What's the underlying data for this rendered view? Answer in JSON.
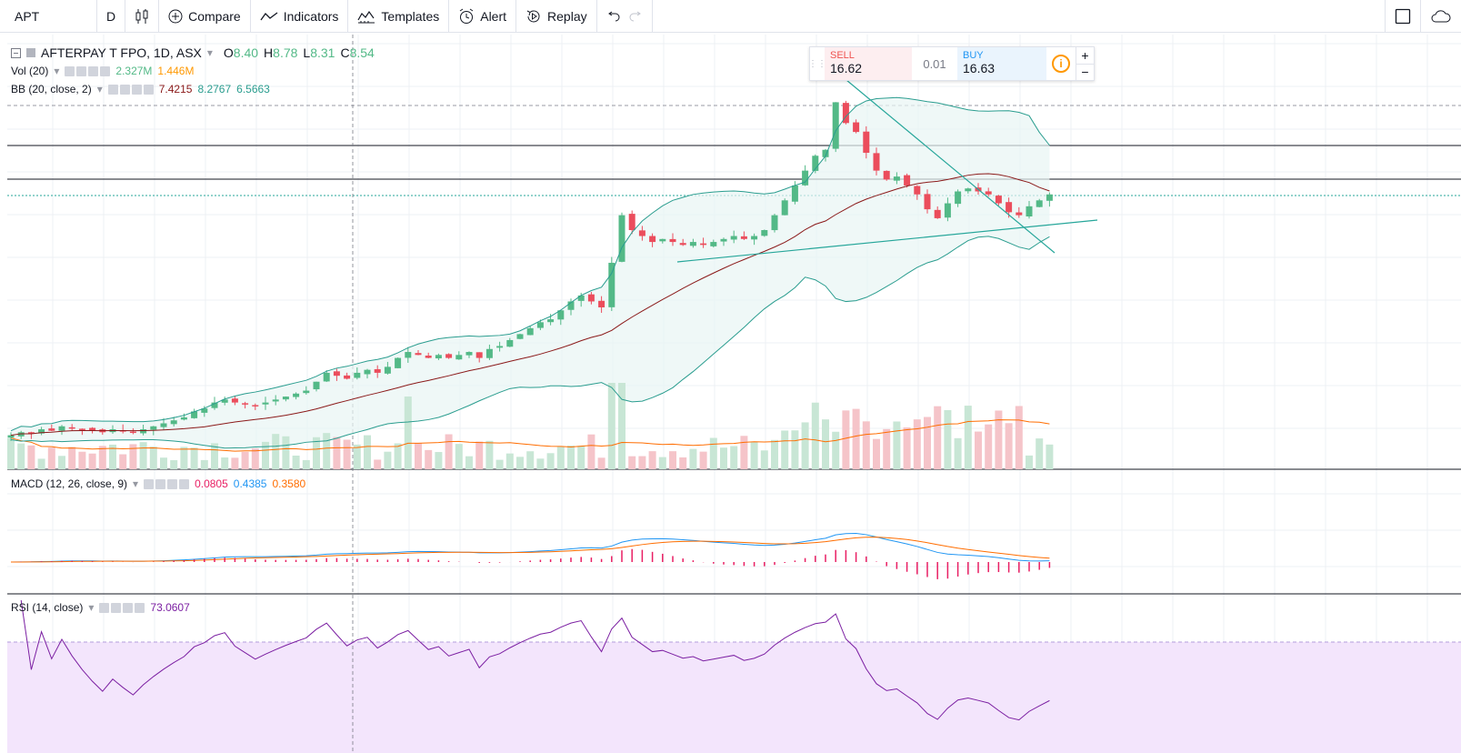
{
  "toolbar": {
    "symbol": "APT",
    "interval": "D",
    "compare_label": "Compare",
    "indicators_label": "Indicators",
    "templates_label": "Templates",
    "alert_label": "Alert",
    "replay_label": "Replay"
  },
  "legend": {
    "title": "AFTERPAY T FPO, 1D, ASX",
    "o_label": "O",
    "o_value": "8.40",
    "h_label": "H",
    "h_value": "8.78",
    "l_label": "L",
    "l_value": "8.31",
    "c_label": "C",
    "c_value": "8.54"
  },
  "vol": {
    "label": "Vol (20)",
    "v1": "2.327M",
    "v2": "1.446M"
  },
  "bb": {
    "label": "BB (20, close, 2)",
    "v1": "7.4215",
    "v2": "8.2767",
    "v3": "6.5663"
  },
  "macd": {
    "label": "MACD (12, 26, close, 9)",
    "v1": "0.0805",
    "v2": "0.4385",
    "v3": "0.3580"
  },
  "rsi": {
    "label": "RSI (14, close)",
    "v1": "73.0607"
  },
  "trade": {
    "sell_label": "SELL",
    "sell_price": "16.62",
    "spread": "0.01",
    "buy_label": "BUY",
    "buy_price": "16.63",
    "info_symbol": "i",
    "plus": "+",
    "minus": "−"
  },
  "colors": {
    "up": "#53b987",
    "down": "#eb4d5c",
    "bb": "#2a9d8f",
    "basis": "#8b1a1a",
    "macd": "#2196f3",
    "signal": "#ff6d00",
    "hist": "#e91e63",
    "rsi": "#7b1fa2",
    "vol_ma": "#ff6d00"
  },
  "icons": [
    "candles-icon",
    "compare-plus-icon",
    "indicators-icon",
    "templates-icon",
    "alert-clock-icon",
    "replay-icon",
    "undo-icon",
    "redo-icon",
    "fullscreen-icon",
    "cloud-icon"
  ],
  "chart_data": {
    "type": "candlestick",
    "closes": [
      8.4,
      8.5,
      8.45,
      8.6,
      8.55,
      8.7,
      8.65,
      8.6,
      8.55,
      8.5,
      8.6,
      8.55,
      8.5,
      8.6,
      8.7,
      8.8,
      8.9,
      9.0,
      9.2,
      9.3,
      9.5,
      9.6,
      9.5,
      9.45,
      9.4,
      9.5,
      9.6,
      9.7,
      9.8,
      9.9,
      10.2,
      10.5,
      10.4,
      10.3,
      10.5,
      10.6,
      10.5,
      10.7,
      11.0,
      11.2,
      11.1,
      11.0,
      11.1,
      11.0,
      11.1,
      11.2,
      11.0,
      11.3,
      11.4,
      11.6,
      11.8,
      12.0,
      12.2,
      12.3,
      12.6,
      12.9,
      13.1,
      12.9,
      12.7,
      14.2,
      15.8,
      15.3,
      15.1,
      14.9,
      15.0,
      14.9,
      14.8,
      14.9,
      14.8,
      14.9,
      15.0,
      15.1,
      15.0,
      15.1,
      15.3,
      15.8,
      16.3,
      16.8,
      17.3,
      17.8,
      18.0,
      19.6,
      18.9,
      18.6,
      17.9,
      17.3,
      17.0,
      17.1,
      16.8,
      16.5,
      16.0,
      15.7,
      16.2,
      16.6,
      16.7,
      16.6,
      16.5,
      16.2,
      15.9,
      15.8,
      16.1,
      16.3,
      16.5
    ]
  }
}
